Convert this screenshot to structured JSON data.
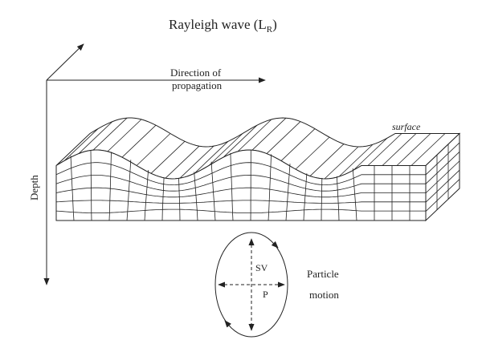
{
  "title": {
    "text": "Rayleigh wave (L",
    "subscript": "R",
    "close": ")"
  },
  "labels": {
    "direction_line1": "Direction of",
    "direction_line2": "propagation",
    "surface": "surface",
    "depth": "Depth"
  },
  "particle_motion": {
    "sv": "SV",
    "p": "P",
    "line1": "Particle",
    "line2": "motion"
  }
}
